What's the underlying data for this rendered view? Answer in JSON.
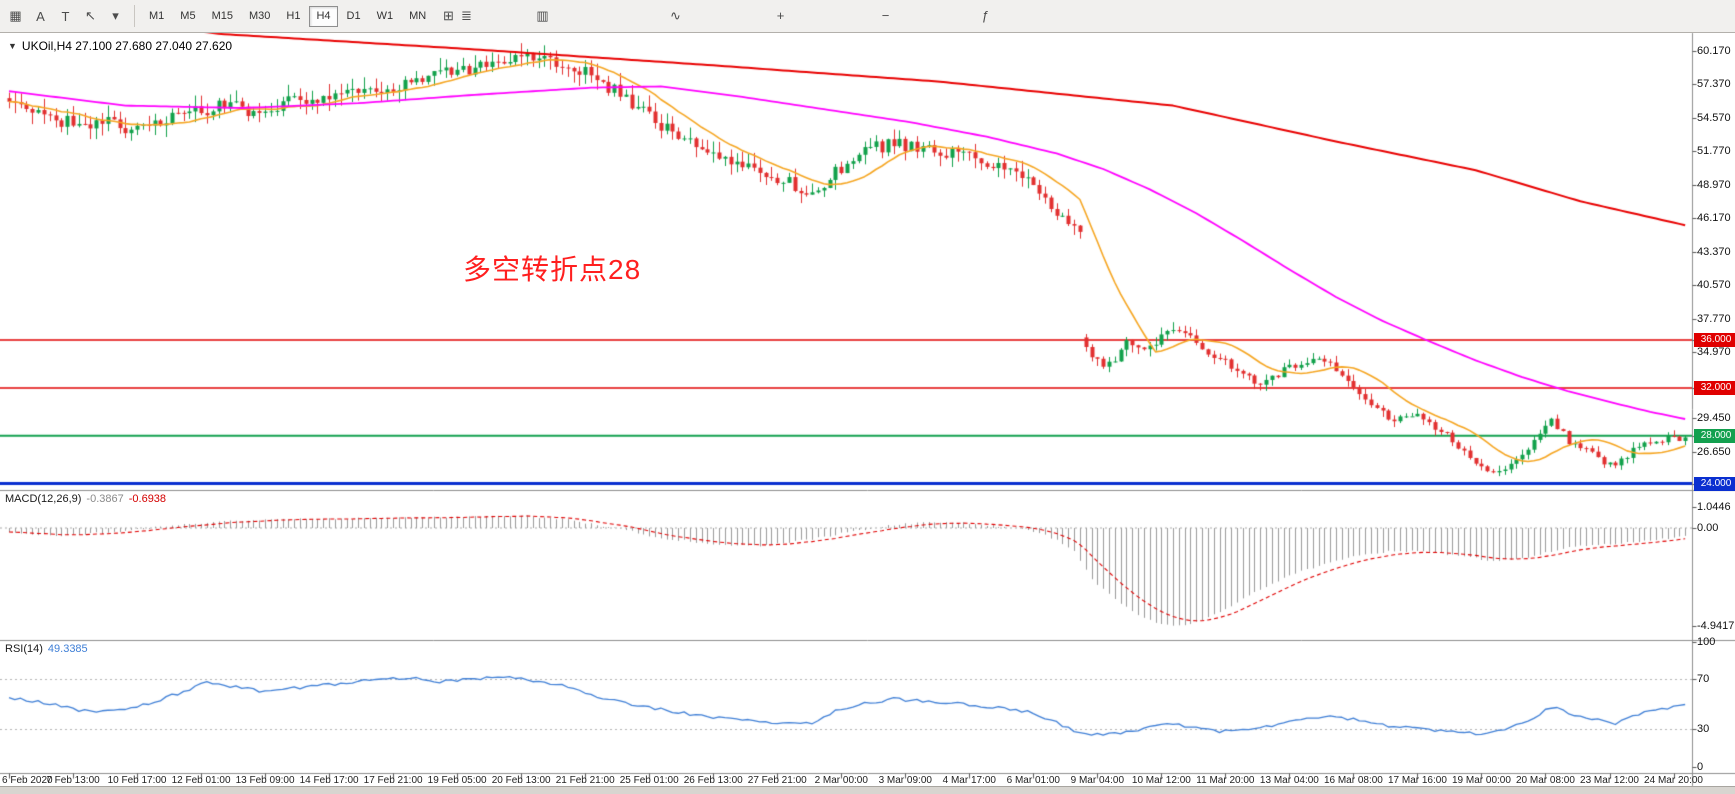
{
  "toolbar": {
    "left_icons": [
      {
        "name": "chart-window-icon",
        "glyph": "▦"
      },
      {
        "name": "text-label-icon",
        "glyph": "A"
      },
      {
        "name": "trendline-icon",
        "glyph": "T"
      },
      {
        "name": "cursor-icon",
        "glyph": "↖"
      },
      {
        "name": "dropdown-arrow-icon",
        "glyph": "▾"
      }
    ],
    "timeframes": [
      "M1",
      "M5",
      "M15",
      "M30",
      "H1",
      "H4",
      "D1",
      "W1",
      "MN"
    ],
    "selected_timeframe": "H4",
    "right_icons": [
      {
        "name": "new-order-icon",
        "glyph": "⊞"
      },
      {
        "name": "bar-chart-icon",
        "glyph": "≣"
      },
      {
        "name": "candle-chart-icon",
        "glyph": "▥"
      },
      {
        "name": "line-chart-icon",
        "glyph": "∿"
      },
      {
        "name": "zoom-in-icon",
        "glyph": "+"
      },
      {
        "name": "zoom-out-icon",
        "glyph": "−"
      },
      {
        "name": "indicators-icon",
        "glyph": "ƒ"
      }
    ]
  },
  "chart": {
    "title_dropdown_glyph": "▼",
    "symbol_title": "UKOil,H4 27.100 27.680 27.040 27.620",
    "annotation": "多空转折点28",
    "annotation_color": "#ff1f1f",
    "price_axis": [
      "60.170",
      "57.370",
      "54.570",
      "51.770",
      "48.970",
      "46.170",
      "43.370",
      "40.570",
      "37.770",
      "34.970",
      "29.450",
      "26.650"
    ],
    "price_badges": [
      {
        "label": "36.000",
        "price": 36.0,
        "color": "#e00000"
      },
      {
        "label": "32.000",
        "price": 32.0,
        "color": "#e00000"
      },
      {
        "label": "28.000",
        "price": 28.0,
        "color": "#13a04f"
      },
      {
        "label": "24.000",
        "price": 24.0,
        "color": "#0a2fd0"
      }
    ]
  },
  "macd_panel": {
    "name": "MACD(12,26,9)",
    "main_value": "-0.3867",
    "signal_value": "-0.6938",
    "axis": [
      "1.0446",
      "0.00",
      "-4.9417"
    ]
  },
  "rsi_panel": {
    "name": "RSI(14)",
    "value": "49.3385",
    "axis": [
      "100",
      "70",
      "30",
      "0"
    ]
  },
  "time_axis": [
    "6 Feb 2020",
    "7 Feb 13:00",
    "10 Feb 17:00",
    "12 Feb 01:00",
    "13 Feb 09:00",
    "14 Feb 17:00",
    "17 Feb 21:00",
    "19 Feb 05:00",
    "20 Feb 13:00",
    "21 Feb 21:00",
    "25 Feb 01:00",
    "26 Feb 13:00",
    "27 Feb 21:00",
    "2 Mar 00:00",
    "3 Mar 09:00",
    "4 Mar 17:00",
    "6 Mar 01:00",
    "9 Mar 04:00",
    "10 Mar 12:00",
    "11 Mar 20:00",
    "13 Mar 04:00",
    "16 Mar 08:00",
    "17 Mar 16:00",
    "19 Mar 00:00",
    "20 Mar 08:00",
    "23 Mar 12:00",
    "24 Mar 20:00"
  ],
  "chart_data": {
    "type": "candlestick",
    "symbol": "UKOil",
    "timeframe": "H4",
    "bars": 289,
    "bars_per_time_label": 11,
    "ohlc_last": {
      "open": 27.1,
      "high": 27.68,
      "low": 27.04,
      "close": 27.62
    },
    "price_range": [
      23.46,
      61.67
    ],
    "colors": {
      "up": "#12a14b",
      "down": "#e23030",
      "ma_fast": "#f5a623",
      "ma_mid": "#ff00ff",
      "ma_slow": "#e80000",
      "macd_hist": "#9a9a9a",
      "macd_signal": "#e00000",
      "rsi_line": "#3f7fd6",
      "level_dotted": "#b3b3b3"
    },
    "price_path_anchors": [
      [
        0,
        55.5
      ],
      [
        6,
        54.6
      ],
      [
        12,
        54.1
      ],
      [
        18,
        54.4
      ],
      [
        21,
        53.2
      ],
      [
        26,
        54.3
      ],
      [
        32,
        55.2
      ],
      [
        39,
        55.7
      ],
      [
        43,
        54.6
      ],
      [
        48,
        55.9
      ],
      [
        56,
        56.6
      ],
      [
        65,
        57.2
      ],
      [
        73,
        58.0
      ],
      [
        79,
        58.7
      ],
      [
        85,
        59.2
      ],
      [
        90,
        59.6
      ],
      [
        95,
        59.0
      ],
      [
        98,
        58.7
      ],
      [
        102,
        57.5
      ],
      [
        106,
        56.1
      ],
      [
        110,
        54.7
      ],
      [
        115,
        52.9
      ],
      [
        121,
        51.5
      ],
      [
        127,
        50.6
      ],
      [
        132,
        49.6
      ],
      [
        137,
        48.5
      ],
      [
        140,
        49.0
      ],
      [
        142,
        50.1
      ],
      [
        148,
        52.0
      ],
      [
        152,
        52.4
      ],
      [
        157,
        52.0
      ],
      [
        163,
        51.5
      ],
      [
        169,
        50.8
      ],
      [
        173,
        50.1
      ],
      [
        177,
        48.7
      ],
      [
        180,
        46.4
      ],
      [
        183,
        45.2
      ],
      [
        184,
        45.0
      ],
      [
        185,
        35.6
      ],
      [
        186,
        34.6
      ],
      [
        188,
        33.6
      ],
      [
        190,
        34.2
      ],
      [
        192,
        36.1
      ],
      [
        194,
        35.4
      ],
      [
        196,
        35.2
      ],
      [
        198,
        36.2
      ],
      [
        200,
        37.0
      ],
      [
        203,
        36.1
      ],
      [
        207,
        34.7
      ],
      [
        211,
        33.4
      ],
      [
        215,
        32.1
      ],
      [
        220,
        33.8
      ],
      [
        224,
        34.5
      ],
      [
        227,
        34.2
      ],
      [
        231,
        32.0
      ],
      [
        234,
        30.7
      ],
      [
        238,
        29.3
      ],
      [
        242,
        29.8
      ],
      [
        247,
        28.0
      ],
      [
        251,
        26.2
      ],
      [
        253,
        25.4
      ],
      [
        255,
        24.9
      ],
      [
        257,
        25.3
      ],
      [
        262,
        27.5
      ],
      [
        264,
        28.9
      ],
      [
        265,
        29.4
      ],
      [
        268,
        27.5
      ],
      [
        271,
        26.8
      ],
      [
        274,
        25.8
      ],
      [
        276,
        25.6
      ],
      [
        280,
        27.2
      ],
      [
        283,
        27.6
      ],
      [
        286,
        27.9
      ],
      [
        288,
        27.62
      ]
    ],
    "sma_fast_period": 13,
    "ma_magenta_anchors": [
      [
        0,
        56.8
      ],
      [
        20,
        55.6
      ],
      [
        40,
        55.4
      ],
      [
        60,
        55.8
      ],
      [
        80,
        56.5
      ],
      [
        100,
        57.1
      ],
      [
        112,
        57.2
      ],
      [
        125,
        56.4
      ],
      [
        140,
        55.3
      ],
      [
        155,
        54.2
      ],
      [
        168,
        53.0
      ],
      [
        180,
        51.6
      ],
      [
        188,
        50.3
      ],
      [
        196,
        48.6
      ],
      [
        204,
        46.6
      ],
      [
        212,
        44.3
      ],
      [
        220,
        41.9
      ],
      [
        228,
        39.6
      ],
      [
        236,
        37.6
      ],
      [
        244,
        35.9
      ],
      [
        252,
        34.3
      ],
      [
        260,
        32.9
      ],
      [
        268,
        31.7
      ],
      [
        276,
        30.7
      ],
      [
        282,
        30.0
      ],
      [
        288,
        29.4
      ]
    ],
    "ma_red_anchors": [
      [
        0,
        63.8
      ],
      [
        36,
        61.6
      ],
      [
        80,
        60.3
      ],
      [
        120,
        59.0
      ],
      [
        160,
        57.6
      ],
      [
        200,
        55.6
      ],
      [
        228,
        52.6
      ],
      [
        252,
        50.2
      ],
      [
        270,
        47.6
      ],
      [
        288,
        45.6
      ]
    ],
    "hlines": [
      {
        "price": 36.0,
        "color": "#e00000",
        "width": 1.5
      },
      {
        "price": 32.0,
        "color": "#e00000",
        "width": 1.5
      },
      {
        "price": 28.0,
        "color": "#13a04f",
        "width": 2
      },
      {
        "price": 24.0,
        "color": "#0a2fd0",
        "width": 3
      }
    ],
    "macd": {
      "signal_period": 9,
      "anchors": [
        [
          0,
          -0.2
        ],
        [
          8,
          -0.38
        ],
        [
          16,
          -0.25
        ],
        [
          24,
          0.0
        ],
        [
          35,
          0.3
        ],
        [
          50,
          0.45
        ],
        [
          70,
          0.5
        ],
        [
          88,
          0.62
        ],
        [
          96,
          0.4
        ],
        [
          104,
          0.0
        ],
        [
          112,
          -0.5
        ],
        [
          122,
          -0.85
        ],
        [
          130,
          -0.9
        ],
        [
          138,
          -0.55
        ],
        [
          146,
          -0.1
        ],
        [
          152,
          0.15
        ],
        [
          158,
          0.3
        ],
        [
          164,
          0.25
        ],
        [
          170,
          0.1
        ],
        [
          176,
          -0.15
        ],
        [
          180,
          -0.6
        ],
        [
          183,
          -1.2
        ],
        [
          186,
          -2.6
        ],
        [
          190,
          -3.6
        ],
        [
          194,
          -4.4
        ],
        [
          198,
          -4.85
        ],
        [
          202,
          -4.9
        ],
        [
          206,
          -4.5
        ],
        [
          210,
          -3.9
        ],
        [
          215,
          -3.1
        ],
        [
          220,
          -2.4
        ],
        [
          226,
          -1.8
        ],
        [
          232,
          -1.4
        ],
        [
          238,
          -1.15
        ],
        [
          244,
          -1.2
        ],
        [
          250,
          -1.45
        ],
        [
          255,
          -1.65
        ],
        [
          260,
          -1.55
        ],
        [
          264,
          -1.25
        ],
        [
          268,
          -1.0
        ],
        [
          272,
          -0.85
        ],
        [
          276,
          -0.8
        ],
        [
          280,
          -0.7
        ],
        [
          284,
          -0.55
        ],
        [
          288,
          -0.387
        ]
      ]
    },
    "rsi": {
      "levels": [
        70,
        30
      ],
      "anchors": [
        [
          0,
          55
        ],
        [
          6,
          51
        ],
        [
          12,
          45
        ],
        [
          18,
          44
        ],
        [
          24,
          50
        ],
        [
          30,
          60
        ],
        [
          34,
          68
        ],
        [
          38,
          64
        ],
        [
          44,
          60
        ],
        [
          50,
          63
        ],
        [
          56,
          66
        ],
        [
          62,
          69
        ],
        [
          68,
          71
        ],
        [
          74,
          68
        ],
        [
          80,
          70
        ],
        [
          86,
          72
        ],
        [
          90,
          69
        ],
        [
          96,
          64
        ],
        [
          102,
          55
        ],
        [
          108,
          49
        ],
        [
          114,
          44
        ],
        [
          120,
          40
        ],
        [
          126,
          37
        ],
        [
          132,
          35
        ],
        [
          138,
          34
        ],
        [
          142,
          44
        ],
        [
          146,
          50
        ],
        [
          152,
          54
        ],
        [
          158,
          52
        ],
        [
          164,
          50
        ],
        [
          170,
          47
        ],
        [
          176,
          43
        ],
        [
          180,
          35
        ],
        [
          184,
          27
        ],
        [
          188,
          25
        ],
        [
          192,
          28
        ],
        [
          196,
          31
        ],
        [
          200,
          34
        ],
        [
          204,
          31
        ],
        [
          208,
          28
        ],
        [
          212,
          29
        ],
        [
          216,
          32
        ],
        [
          220,
          36
        ],
        [
          226,
          40
        ],
        [
          231,
          38
        ],
        [
          236,
          33
        ],
        [
          240,
          31
        ],
        [
          245,
          29
        ],
        [
          250,
          27
        ],
        [
          253,
          26
        ],
        [
          257,
          29
        ],
        [
          261,
          37
        ],
        [
          264,
          45
        ],
        [
          266,
          48
        ],
        [
          268,
          42
        ],
        [
          272,
          38
        ],
        [
          276,
          34
        ],
        [
          279,
          40
        ],
        [
          282,
          45
        ],
        [
          285,
          47
        ],
        [
          288,
          49.3
        ]
      ]
    }
  }
}
